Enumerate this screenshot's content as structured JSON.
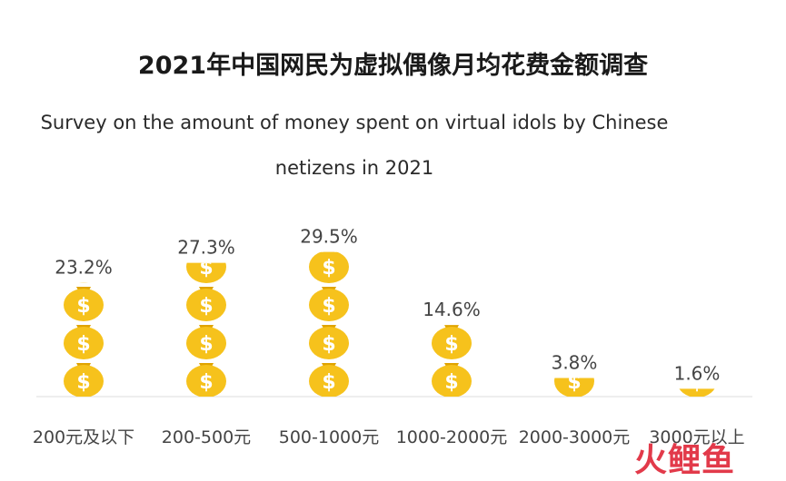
{
  "title": "2021年中国网民为虚拟偶像月均花费金额调查",
  "subtitle": "Survey on the amount of money spent on virtual idols by Chinese netizens in 2021",
  "watermark": "火鲤鱼",
  "colors": {
    "bag": "#f6c21c",
    "bag_dark": "#e0a400",
    "dollar": "#ffffff",
    "baseline": "#dddddd"
  },
  "chart_data": {
    "type": "bar",
    "icon": "money-bag-icon",
    "categories": [
      "200元及以下",
      "200-500元",
      "500-1000元",
      "1000-2000元",
      "2000-3000元",
      "3000元以上"
    ],
    "values": [
      23.2,
      27.3,
      29.5,
      14.6,
      3.8,
      1.6
    ],
    "value_labels": [
      "23.2%",
      "27.3%",
      "29.5%",
      "14.6%",
      "3.8%",
      "1.6%"
    ],
    "ylim": [
      0,
      30
    ],
    "grid": false,
    "legend": "none"
  }
}
